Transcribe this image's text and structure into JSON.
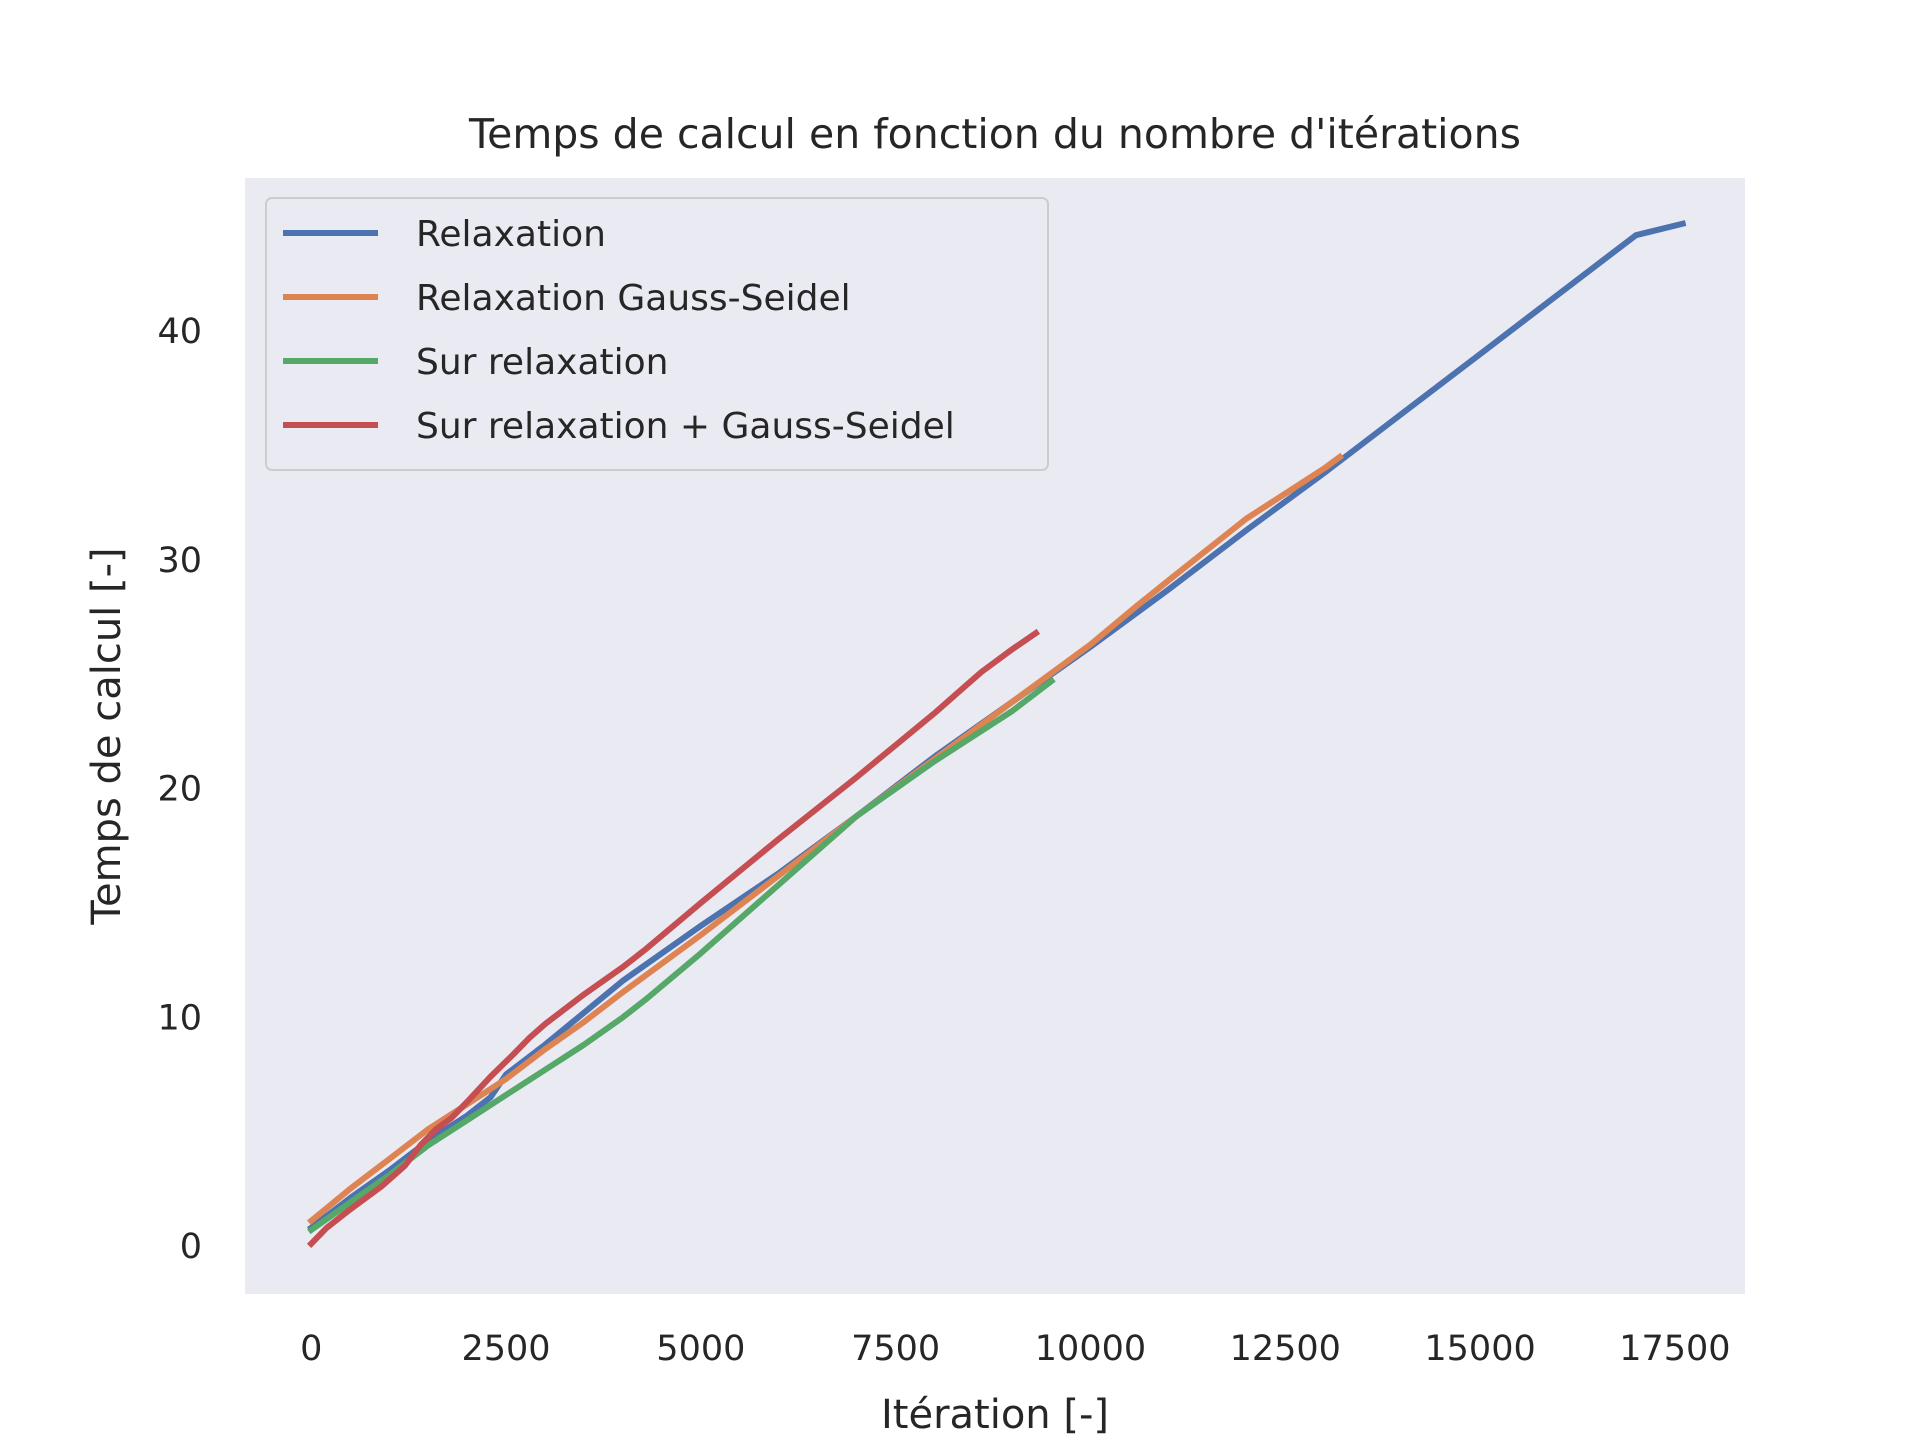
{
  "chart_data": {
    "type": "line",
    "title": "Temps de calcul en fonction du nombre d'itérations",
    "xlabel": "Itération [-]",
    "ylabel": "Temps de calcul [-]",
    "xlim": [
      -850,
      18400
    ],
    "ylim": [
      -2.1,
      46.7
    ],
    "x_ticks": [
      0,
      2500,
      5000,
      7500,
      10000,
      12500,
      15000,
      17500
    ],
    "x_tick_labels": [
      "0",
      "2500",
      "5000",
      "7500",
      "10000",
      "12500",
      "15000",
      "17500"
    ],
    "y_ticks": [
      0,
      10,
      20,
      30,
      40
    ],
    "y_tick_labels": [
      "0",
      "10",
      "20",
      "30",
      "40"
    ],
    "grid": false,
    "background": "#eaeaf2",
    "legend_position": "upper-left",
    "series": [
      {
        "name": "Relaxation",
        "color": "#4c72b0",
        "x": [
          0,
          500,
          1000,
          1500,
          2000,
          2300,
          2500,
          3000,
          3500,
          4000,
          5000,
          6000,
          7000,
          8000,
          9000,
          9500,
          10000,
          11000,
          12000,
          13000,
          14000,
          15000,
          16000,
          17000,
          17600
        ],
        "y": [
          0.8,
          2.1,
          3.3,
          4.6,
          5.7,
          6.5,
          7.5,
          8.8,
          10.2,
          11.6,
          14.0,
          16.3,
          18.8,
          21.4,
          23.8,
          25.0,
          26.2,
          28.7,
          31.3,
          33.8,
          36.4,
          39.0,
          41.6,
          44.2,
          44.7
        ]
      },
      {
        "name": "Relaxation Gauss-Seidel",
        "color": "#dd8452",
        "x": [
          0,
          500,
          1000,
          1500,
          2000,
          2500,
          3000,
          3500,
          4000,
          5000,
          6000,
          7000,
          8000,
          9000,
          10000,
          10600,
          11000,
          12000,
          13000,
          13200
        ],
        "y": [
          1.1,
          2.5,
          3.8,
          5.1,
          6.2,
          7.3,
          8.6,
          9.8,
          11.1,
          13.6,
          16.2,
          18.8,
          21.3,
          23.8,
          26.3,
          28.0,
          29.1,
          31.8,
          34.0,
          34.5
        ]
      },
      {
        "name": "Sur relaxation",
        "color": "#55a868",
        "x": [
          0,
          500,
          1000,
          1500,
          2000,
          2500,
          3000,
          3500,
          4000,
          4300,
          5000,
          6000,
          7000,
          8000,
          9000,
          9500
        ],
        "y": [
          0.7,
          1.9,
          3.1,
          4.4,
          5.5,
          6.6,
          7.7,
          8.8,
          10.0,
          10.8,
          12.8,
          15.8,
          18.8,
          21.2,
          23.4,
          24.7
        ]
      },
      {
        "name": "Sur relaxation + Gauss-Seidel",
        "color": "#c44e52",
        "x": [
          0,
          200,
          500,
          900,
          1200,
          1400,
          1600,
          1800,
          2000,
          2300,
          2600,
          2800,
          3000,
          3500,
          4000,
          4300,
          5000,
          6000,
          7000,
          8000,
          8300,
          8600,
          9000,
          9300
        ],
        "y": [
          0.1,
          0.8,
          1.6,
          2.6,
          3.5,
          4.4,
          5.1,
          5.6,
          6.3,
          7.4,
          8.4,
          9.1,
          9.7,
          11.0,
          12.2,
          13.0,
          15.0,
          17.8,
          20.5,
          23.3,
          24.2,
          25.1,
          26.1,
          26.8
        ]
      }
    ]
  }
}
